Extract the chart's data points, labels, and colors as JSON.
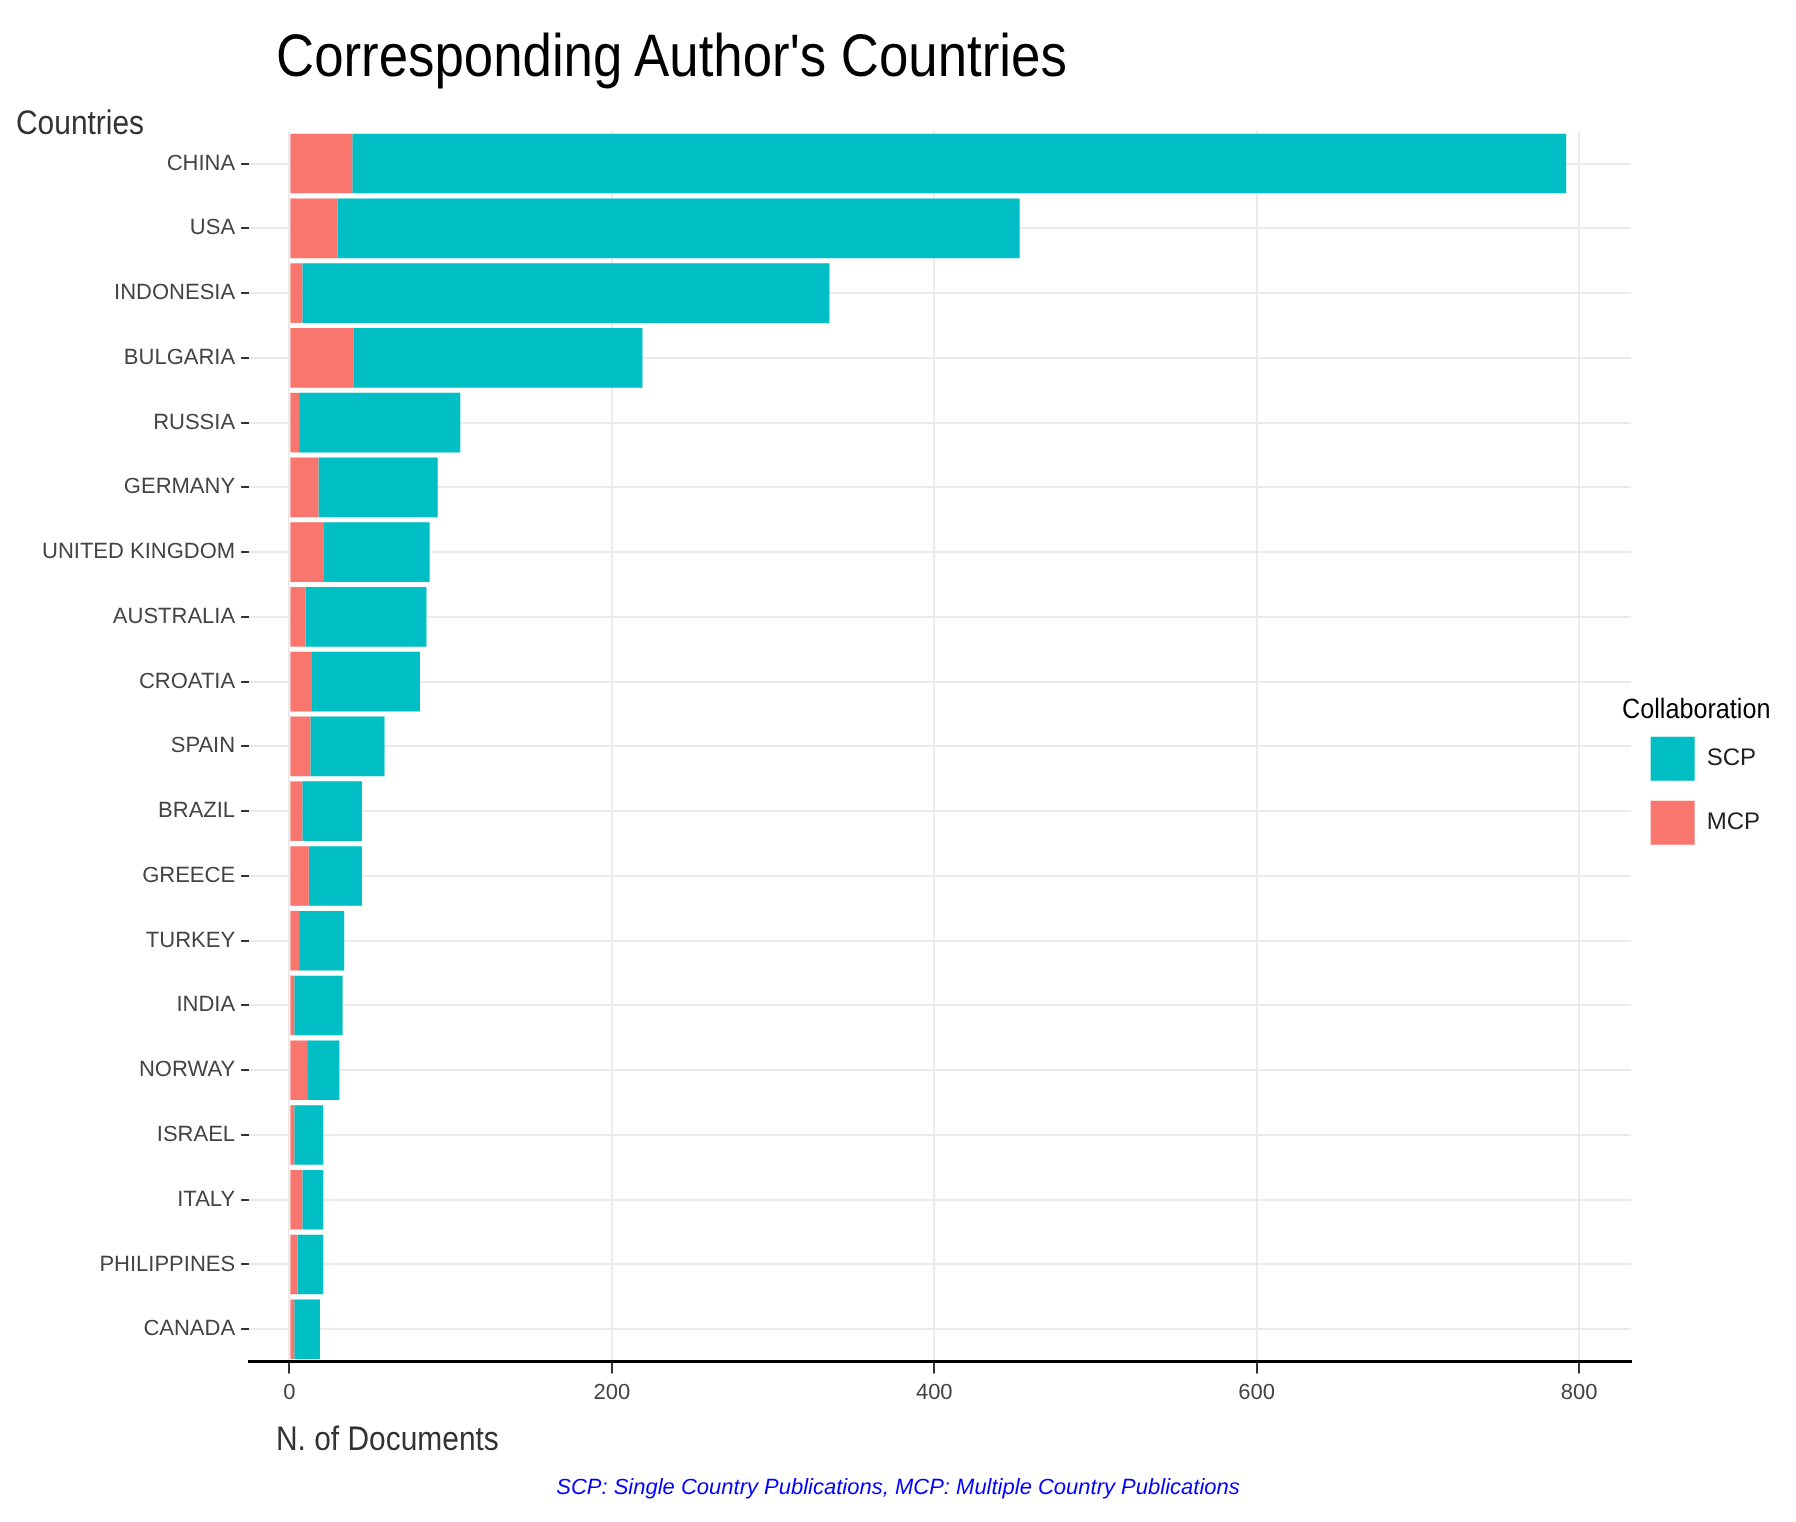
{
  "chart_data": {
    "type": "bar",
    "orientation": "horizontal",
    "stacked": true,
    "title": "Corresponding Author's Countries",
    "xlabel": "N. of Documents",
    "ylabel": "Countries",
    "legend_title": "Collaboration",
    "legend": "right",
    "grid": true,
    "categories": [
      "CHINA",
      "USA",
      "INDONESIA",
      "BULGARIA",
      "RUSSIA",
      "GERMANY",
      "UNITED KINGDOM",
      "AUSTRALIA",
      "CROATIA",
      "SPAIN",
      "BRAZIL",
      "GREECE",
      "TURKEY",
      "INDIA",
      "NORWAY",
      "ISRAEL",
      "ITALY",
      "PHILIPPINES",
      "CANADA"
    ],
    "series": [
      {
        "name": "MCP",
        "color": "#f8766d",
        "values": [
          39,
          30,
          8,
          40,
          6,
          18,
          21,
          10,
          14,
          13,
          8,
          12,
          6,
          3,
          11,
          3,
          8,
          5,
          3
        ]
      },
      {
        "name": "SCP",
        "color": "#00bfc4",
        "values": [
          753,
          423,
          327,
          179,
          100,
          74,
          66,
          75,
          67,
          46,
          37,
          33,
          28,
          30,
          20,
          18,
          13,
          16,
          16
        ]
      }
    ],
    "xlim": [
      -25,
      832
    ],
    "xticks": [
      0,
      200,
      400,
      600,
      800
    ],
    "annotations": [
      "SCP: Single Country Publications, MCP: Multiple Country Publications"
    ]
  }
}
